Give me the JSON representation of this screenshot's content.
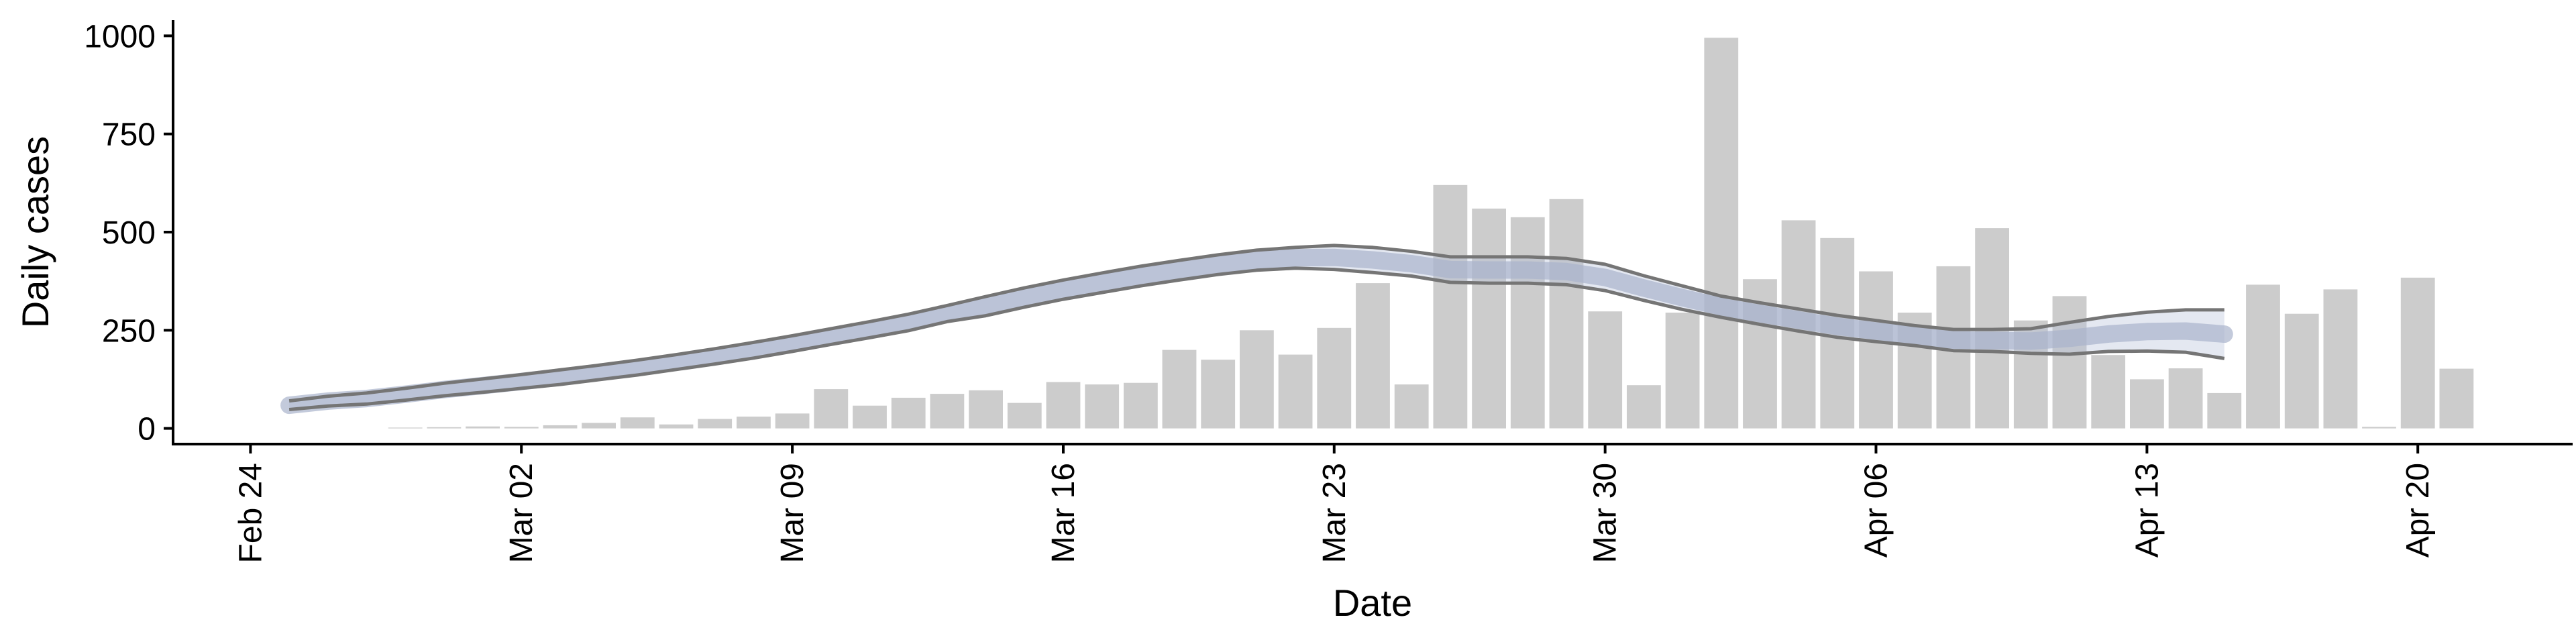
{
  "chart_data": {
    "type": "bar",
    "xlabel": "Date",
    "ylabel": "Daily cases",
    "ylim": [
      -40,
      1040
    ],
    "y_ticks": [
      0,
      250,
      500,
      750,
      1000
    ],
    "x_range": [
      "2020-02-22",
      "2020-04-24"
    ],
    "x_ticks": [
      {
        "date": "2020-02-24",
        "label": "Feb 24"
      },
      {
        "date": "2020-03-02",
        "label": "Mar 02"
      },
      {
        "date": "2020-03-09",
        "label": "Mar 09"
      },
      {
        "date": "2020-03-16",
        "label": "Mar 16"
      },
      {
        "date": "2020-03-23",
        "label": "Mar 23"
      },
      {
        "date": "2020-03-30",
        "label": "Mar 30"
      },
      {
        "date": "2020-04-06",
        "label": "Apr 06"
      },
      {
        "date": "2020-04-13",
        "label": "Apr 13"
      },
      {
        "date": "2020-04-20",
        "label": "Apr 20"
      }
    ],
    "grid": false,
    "legend": "none",
    "colors": {
      "bars": "#cccccc",
      "band_fill": "#b3bdd6",
      "median": "#aab4cc",
      "bounds": "#757575",
      "axis": "#000000"
    },
    "series": [
      {
        "type": "bar",
        "start_date": "2020-02-28",
        "values": [
          2,
          3,
          5,
          4,
          8,
          14,
          28,
          10,
          24,
          30,
          38,
          100,
          58,
          78,
          88,
          97,
          65,
          118,
          112,
          116,
          200,
          175,
          250,
          188,
          256,
          370,
          112,
          620,
          560,
          538,
          584,
          298,
          110,
          295,
          995,
          380,
          530,
          485,
          400,
          295,
          413,
          510,
          275,
          337,
          187,
          125,
          153,
          90,
          366,
          292,
          354,
          4,
          384,
          152
        ]
      },
      {
        "type": "band",
        "start_date": "2020-02-25",
        "upper": [
          70,
          82,
          90,
          102,
          115,
          126,
          137,
          149,
          161,
          174,
          188,
          203,
          219,
          236,
          254,
          272,
          291,
          313,
          336,
          358,
          378,
          396,
          413,
          428,
          442,
          454,
          461,
          466,
          461,
          451,
          437,
          437,
          437,
          433,
          418,
          389,
          363,
          337,
          320,
          304,
          288,
          275,
          262,
          252,
          252,
          254,
          270,
          285,
          296,
          302,
          302
        ],
        "lower": [
          48,
          57,
          62,
          72,
          83,
          92,
          102,
          112,
          124,
          136,
          150,
          164,
          179,
          196,
          214,
          231,
          249,
          272,
          287,
          309,
          329,
          346,
          363,
          378,
          392,
          403,
          408,
          405,
          397,
          388,
          372,
          370,
          370,
          366,
          351,
          326,
          303,
          283,
          265,
          248,
          232,
          221,
          211,
          198,
          196,
          191,
          189,
          196,
          197,
          194,
          178
        ]
      }
    ]
  }
}
